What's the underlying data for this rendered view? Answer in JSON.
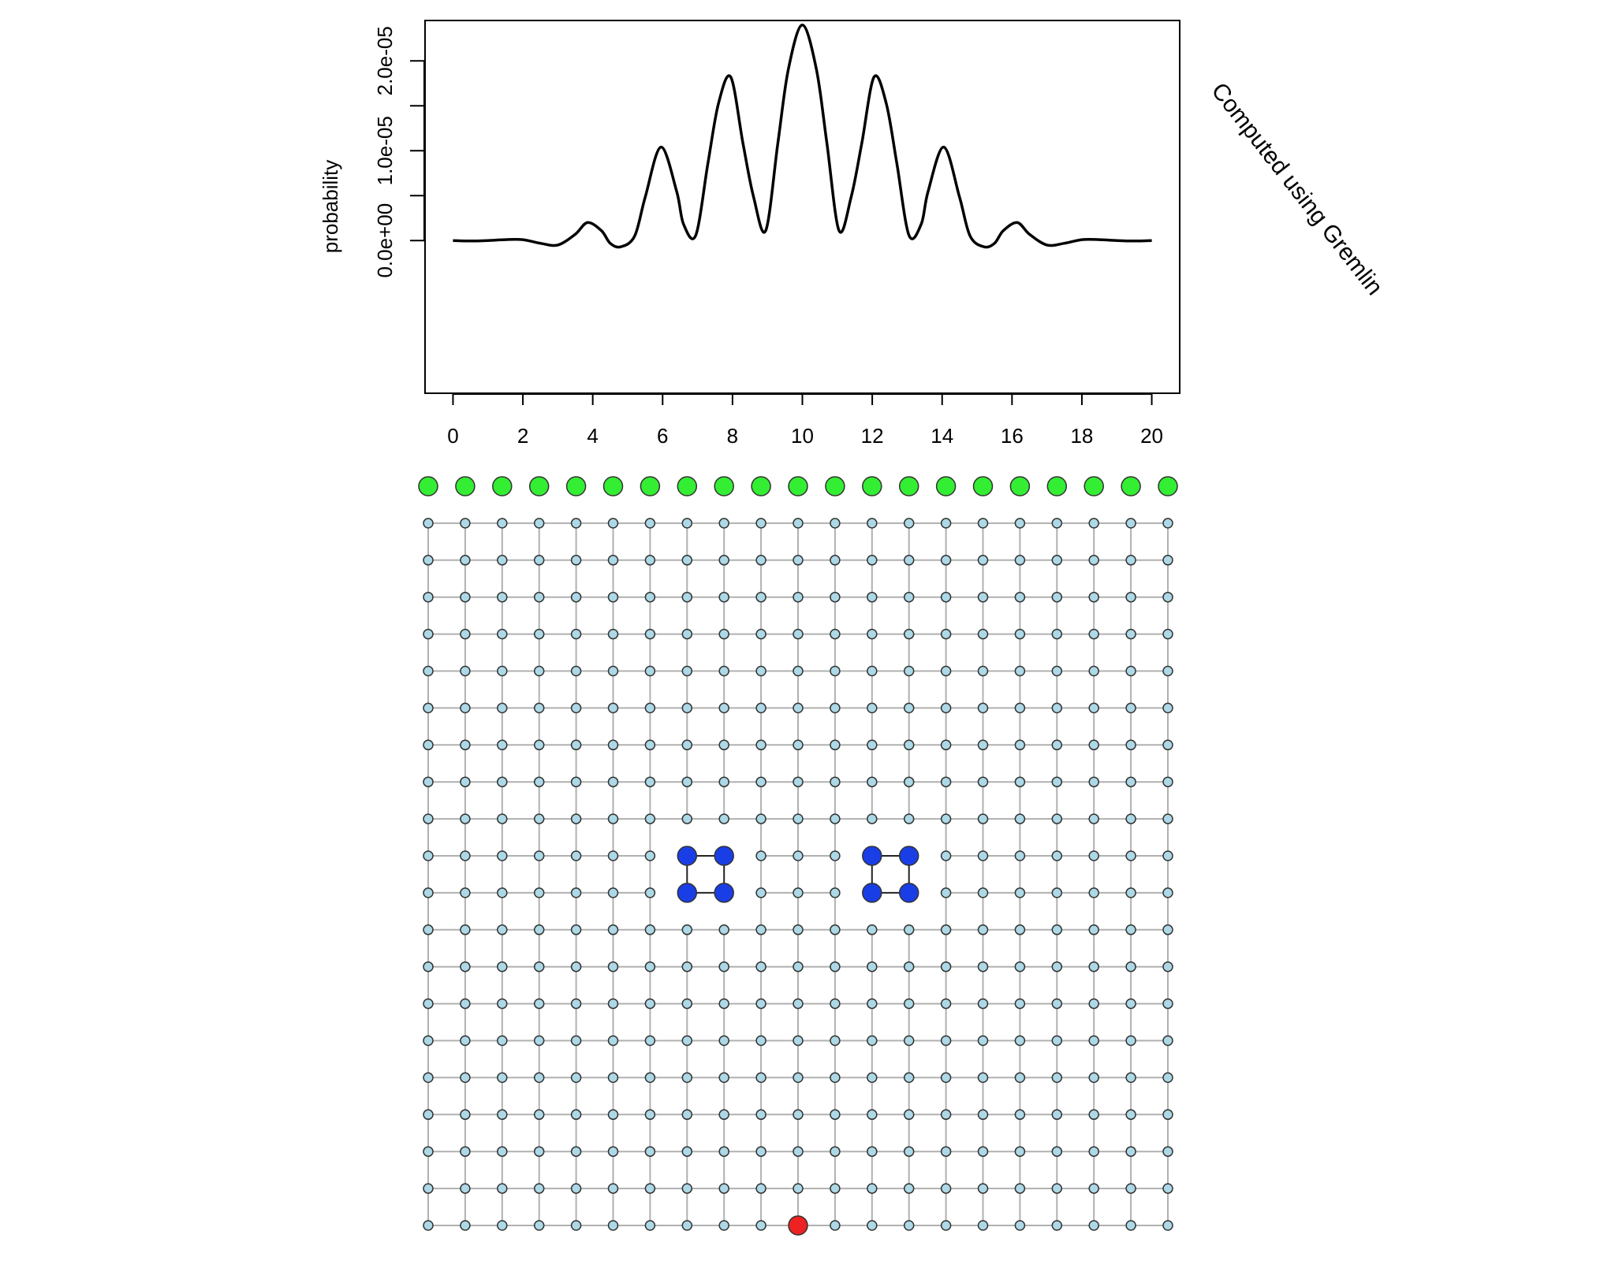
{
  "chart_data": [
    {
      "type": "line",
      "title": "",
      "xlabel": "",
      "ylabel": "probability",
      "xlim": [
        -0.8,
        20.8
      ],
      "ylim": [
        -1.7e-05,
        2.45e-05
      ],
      "x_ticks": [
        0,
        2,
        4,
        6,
        8,
        10,
        12,
        14,
        16,
        18,
        20
      ],
      "x_tick_labels": [
        "0",
        "2",
        "4",
        "6",
        "8",
        "10",
        "12",
        "14",
        "16",
        "18",
        "20"
      ],
      "y_ticks": [
        0,
        5e-06,
        1e-05,
        1.5e-05,
        2e-05
      ],
      "y_tick_labels": [
        "0.0e+00",
        "",
        "1.0e-05",
        "",
        "2.0e-05"
      ],
      "grid": false,
      "annotation": "Computed using Gremlin",
      "series": [
        {
          "color": "#000000",
          "x": [
            0,
            0.5,
            1,
            1.5,
            2,
            2.5,
            3,
            3.5,
            3.85,
            4.25,
            4.5,
            4.8,
            5.2,
            5.5,
            5.95,
            6.4,
            6.6,
            6.95,
            7.3,
            7.6,
            7.95,
            8.3,
            8.6,
            8.95,
            9.3,
            9.6,
            10,
            10.4,
            10.7,
            11.05,
            11.4,
            11.7,
            12.05,
            12.4,
            12.7,
            13.05,
            13.4,
            13.6,
            14.05,
            14.5,
            14.8,
            15.2,
            15.5,
            15.75,
            16.15,
            16.5,
            17,
            17.5,
            18,
            18.5,
            19,
            19.5,
            20
          ],
          "y": [
            0,
            -5e-08,
            0,
            1e-07,
            1e-07,
            -3e-07,
            -5e-07,
            7e-07,
            2e-06,
            1.1e-06,
            -3e-07,
            -7e-07,
            5e-07,
            4.8e-06,
            1.04e-05,
            5.5e-06,
            1.8e-06,
            6e-07,
            8.7e-06,
            1.53e-05,
            1.82e-05,
            1.08e-05,
            4.9e-06,
            1.1e-06,
            1.09e-05,
            1.91e-05,
            2.4e-05,
            1.91e-05,
            1.09e-05,
            1.1e-06,
            4.9e-06,
            1.08e-05,
            1.82e-05,
            1.53e-05,
            8.7e-06,
            6e-07,
            1.8e-06,
            5.5e-06,
            1.04e-05,
            4.8e-06,
            5e-07,
            -7e-07,
            -3e-07,
            1.1e-06,
            2e-06,
            7e-07,
            -5e-07,
            -3e-07,
            1e-07,
            1e-07,
            0,
            -5e-08,
            0
          ]
        }
      ]
    },
    {
      "type": "scatter",
      "title": "",
      "grid_columns": 21,
      "grid_rows": 21,
      "default_node_color": "#add8e6",
      "edge_color": "#b0b0b0",
      "green_color": "#33ee33",
      "blue_color": "#1a3ee6",
      "red_color": "#ee2222",
      "green_nodes": [
        [
          0,
          0
        ],
        [
          1,
          0
        ],
        [
          2,
          0
        ],
        [
          3,
          0
        ],
        [
          4,
          0
        ],
        [
          5,
          0
        ],
        [
          6,
          0
        ],
        [
          7,
          0
        ],
        [
          8,
          0
        ],
        [
          9,
          0
        ],
        [
          10,
          0
        ],
        [
          11,
          0
        ],
        [
          12,
          0
        ],
        [
          13,
          0
        ],
        [
          14,
          0
        ],
        [
          15,
          0
        ],
        [
          16,
          0
        ],
        [
          17,
          0
        ],
        [
          18,
          0
        ],
        [
          19,
          0
        ],
        [
          20,
          0
        ]
      ],
      "blue_nodes": [
        [
          7,
          10
        ],
        [
          8,
          10
        ],
        [
          7,
          11
        ],
        [
          8,
          11
        ],
        [
          12,
          10
        ],
        [
          13,
          10
        ],
        [
          12,
          11
        ],
        [
          13,
          11
        ]
      ],
      "red_nodes": [
        [
          10,
          20
        ]
      ]
    }
  ]
}
